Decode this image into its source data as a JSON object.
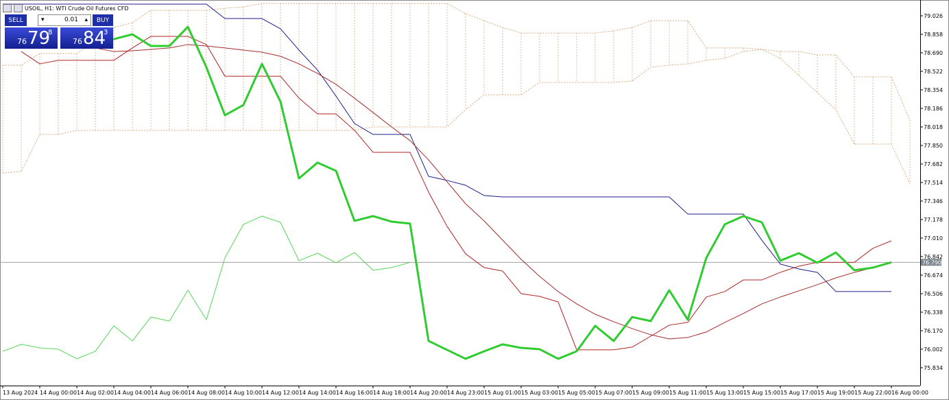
{
  "header": {
    "title": "USOIL, H1:  WTI Crude Oil Futures CFD"
  },
  "trade_panel": {
    "sell": "SELL",
    "lot": "0.01",
    "buy": "BUY",
    "bid": {
      "prefix": "76",
      "main": "79",
      "fraction": "8"
    },
    "ask": {
      "prefix": "76",
      "main": "84",
      "fraction": "3"
    }
  },
  "chart_data": {
    "type": "line",
    "categories": [
      "13 Aug 2024",
      null,
      "14 Aug 00:00",
      null,
      "14 Aug 02:00",
      null,
      "14 Aug 04:00",
      null,
      "14 Aug 06:00",
      null,
      "14 Aug 08:00",
      null,
      "14 Aug 10:00",
      null,
      "14 Aug 12:00",
      null,
      "14 Aug 14:00",
      null,
      "14 Aug 16:00",
      null,
      "14 Aug 18:00",
      null,
      "14 Aug 20:00",
      null,
      "14 Aug 23:00",
      null,
      "15 Aug 01:00",
      null,
      "15 Aug 03:00",
      null,
      "15 Aug 05:00",
      null,
      "15 Aug 07:00",
      null,
      "15 Aug 09:00",
      null,
      "15 Aug 11:00",
      null,
      "15 Aug 13:00",
      null,
      "15 Aug 15:00",
      null,
      "15 Aug 17:00",
      null,
      "15 Aug 19:00",
      null,
      "15 Aug 22:00",
      null,
      "16 Aug 00:00",
      null
    ],
    "ylim": [
      75.672,
      79.138
    ],
    "yticks": [
      79.026,
      78.858,
      {
        "value": 78.69,
        "label": "78.690"
      },
      78.522,
      78.354,
      78.186,
      78.018,
      {
        "value": 77.85,
        "label": "77.850"
      },
      77.682,
      77.514,
      77.346,
      77.178,
      {
        "value": 77.01,
        "label": "77.010"
      },
      76.842,
      76.674,
      76.506,
      76.338,
      {
        "value": 76.17,
        "label": "76.170"
      },
      76.002,
      75.834
    ],
    "current_price": {
      "value": 76.79,
      "label": "76.790"
    },
    "cloud": {
      "color": "#d9a877",
      "span_a": [
        78.578,
        78.578,
        78.684,
        78.684,
        78.684,
        78.796,
        78.92,
        78.964,
        79.076,
        79.076,
        79.076,
        79.076,
        79.094,
        79.107,
        79.138,
        79.138,
        79.138,
        79.138,
        79.138,
        79.138,
        79.138,
        79.138,
        79.138,
        79.138,
        79.138,
        79.045,
        78.982,
        78.92,
        78.87,
        78.87,
        78.87,
        78.87,
        78.87,
        78.889,
        78.92,
        78.982,
        78.982,
        78.982,
        78.734,
        78.734,
        78.734,
        78.721,
        78.702,
        78.702,
        78.671,
        78.671,
        78.472,
        78.472,
        78.472,
        78.08
      ],
      "span_b": [
        77.601,
        77.614,
        77.95,
        77.95,
        77.987,
        77.987,
        77.987,
        77.987,
        77.987,
        77.987,
        77.987,
        77.987,
        77.987,
        77.987,
        77.987,
        77.987,
        77.987,
        77.987,
        77.987,
        77.987,
        78.018,
        78.018,
        78.018,
        78.018,
        78.018,
        78.174,
        78.31,
        78.31,
        78.31,
        78.422,
        78.422,
        78.422,
        78.422,
        78.422,
        78.435,
        78.559,
        78.578,
        78.59,
        78.622,
        78.64,
        78.702,
        78.721,
        78.64,
        78.485,
        78.329,
        78.174,
        77.862,
        77.862,
        77.862,
        77.502
      ]
    },
    "series": [
      {
        "color": "#1c1c8a",
        "width": 1,
        "values": [
          79.132,
          79.132,
          79.132,
          79.132,
          79.132,
          79.132,
          79.132,
          79.132,
          79.132,
          79.132,
          79.132,
          79.132,
          79.001,
          79.001,
          79.001,
          78.908,
          78.715,
          78.534,
          78.298,
          78.049,
          77.95,
          77.95,
          77.95,
          77.57,
          77.533,
          77.489,
          77.396,
          77.383,
          77.383,
          77.383,
          77.383,
          77.383,
          77.383,
          77.383,
          77.383,
          77.383,
          77.383,
          77.228,
          77.228,
          77.228,
          77.228,
          76.991,
          76.774,
          76.73,
          76.699,
          76.525,
          76.525,
          76.525,
          76.525,
          null
        ]
      },
      {
        "color": "#b22222",
        "width": 1,
        "values": [
          null,
          78.702,
          78.59,
          78.622,
          78.622,
          78.622,
          78.622,
          78.734,
          78.839,
          78.839,
          78.839,
          78.765,
          78.478,
          78.478,
          78.478,
          78.478,
          78.279,
          78.136,
          78.136,
          77.987,
          77.788,
          77.788,
          77.788,
          77.427,
          77.116,
          76.867,
          76.742,
          76.711,
          76.506,
          76.481,
          76.431,
          75.996,
          75.996,
          75.996,
          76.021,
          76.12,
          76.22,
          76.245,
          76.475,
          76.525,
          76.63,
          76.63,
          76.699,
          76.755,
          76.79,
          76.79,
          76.79,
          76.917,
          76.985,
          null
        ]
      },
      {
        "color": "#a52a2a",
        "width": 1,
        "values": [
          null,
          null,
          null,
          null,
          null,
          78.734,
          78.702,
          78.709,
          78.721,
          78.734,
          78.765,
          78.752,
          78.734,
          78.715,
          78.696,
          78.659,
          78.59,
          78.503,
          78.404,
          78.279,
          78.149,
          78.018,
          77.894,
          77.719,
          77.52,
          77.321,
          77.166,
          76.991,
          76.817,
          76.662,
          76.525,
          76.413,
          76.319,
          76.251,
          76.189,
          76.133,
          76.095,
          76.108,
          76.158,
          76.245,
          76.326,
          76.413,
          76.475,
          76.531,
          76.587,
          76.649,
          76.699,
          76.742,
          76.79,
          null
        ]
      },
      {
        "color": "#55d655",
        "width": 1,
        "values": [
          75.983,
          76.046,
          76.014,
          76.002,
          75.915,
          75.983,
          76.214,
          76.077,
          76.294,
          76.257,
          76.537,
          76.27,
          76.83,
          77.134,
          77.209,
          77.153,
          76.805,
          76.873,
          76.786,
          76.879,
          76.718,
          76.742,
          76.79,
          null,
          null,
          null,
          null,
          null,
          null,
          null,
          null,
          null,
          null,
          null,
          null,
          null,
          null,
          null,
          null,
          null,
          null,
          null,
          null,
          null,
          null,
          null,
          null,
          null,
          null,
          null
        ]
      },
      {
        "color": "#2ecc2e",
        "width": 3,
        "values": [
          null,
          null,
          null,
          null,
          null,
          78.814,
          78.814,
          78.858,
          78.752,
          78.752,
          78.926,
          78.559,
          78.124,
          78.217,
          78.59,
          78.248,
          77.551,
          77.694,
          77.62,
          77.166,
          77.209,
          77.159,
          77.141,
          76.077,
          75.996,
          75.915,
          75.983,
          76.046,
          76.014,
          76.002,
          75.915,
          75.983,
          76.214,
          76.077,
          76.294,
          76.257,
          76.537,
          76.27,
          76.83,
          77.134,
          77.209,
          77.153,
          76.805,
          76.873,
          76.786,
          76.879,
          76.718,
          76.742,
          76.79,
          null
        ]
      }
    ]
  }
}
